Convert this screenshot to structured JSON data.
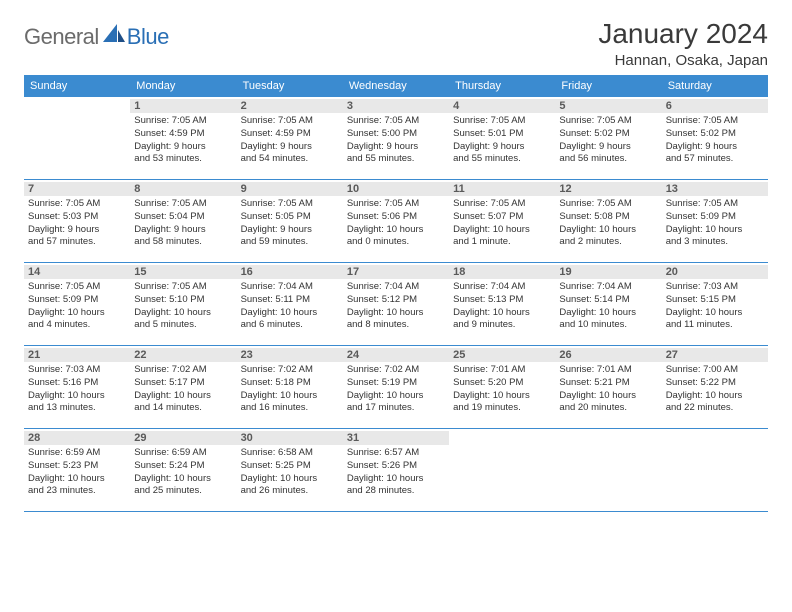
{
  "brand": {
    "part1": "General",
    "part2": "Blue"
  },
  "title": "January 2024",
  "location": "Hannan, Osaka, Japan",
  "colors": {
    "header_bg": "#3b8bd0",
    "header_text": "#ffffff",
    "day_label_bg": "#e8e8e8",
    "day_label_text": "#5a5a5a",
    "body_text": "#333333",
    "brand_gray": "#6b6b6b",
    "brand_blue": "#2a6fb5",
    "rule": "#3b8bd0"
  },
  "weekdays": [
    "Sunday",
    "Monday",
    "Tuesday",
    "Wednesday",
    "Thursday",
    "Friday",
    "Saturday"
  ],
  "weeks": [
    [
      {
        "day": "",
        "sunrise": "",
        "sunset": "",
        "daylight1": "",
        "daylight2": ""
      },
      {
        "day": "1",
        "sunrise": "Sunrise: 7:05 AM",
        "sunset": "Sunset: 4:59 PM",
        "daylight1": "Daylight: 9 hours",
        "daylight2": "and 53 minutes."
      },
      {
        "day": "2",
        "sunrise": "Sunrise: 7:05 AM",
        "sunset": "Sunset: 4:59 PM",
        "daylight1": "Daylight: 9 hours",
        "daylight2": "and 54 minutes."
      },
      {
        "day": "3",
        "sunrise": "Sunrise: 7:05 AM",
        "sunset": "Sunset: 5:00 PM",
        "daylight1": "Daylight: 9 hours",
        "daylight2": "and 55 minutes."
      },
      {
        "day": "4",
        "sunrise": "Sunrise: 7:05 AM",
        "sunset": "Sunset: 5:01 PM",
        "daylight1": "Daylight: 9 hours",
        "daylight2": "and 55 minutes."
      },
      {
        "day": "5",
        "sunrise": "Sunrise: 7:05 AM",
        "sunset": "Sunset: 5:02 PM",
        "daylight1": "Daylight: 9 hours",
        "daylight2": "and 56 minutes."
      },
      {
        "day": "6",
        "sunrise": "Sunrise: 7:05 AM",
        "sunset": "Sunset: 5:02 PM",
        "daylight1": "Daylight: 9 hours",
        "daylight2": "and 57 minutes."
      }
    ],
    [
      {
        "day": "7",
        "sunrise": "Sunrise: 7:05 AM",
        "sunset": "Sunset: 5:03 PM",
        "daylight1": "Daylight: 9 hours",
        "daylight2": "and 57 minutes."
      },
      {
        "day": "8",
        "sunrise": "Sunrise: 7:05 AM",
        "sunset": "Sunset: 5:04 PM",
        "daylight1": "Daylight: 9 hours",
        "daylight2": "and 58 minutes."
      },
      {
        "day": "9",
        "sunrise": "Sunrise: 7:05 AM",
        "sunset": "Sunset: 5:05 PM",
        "daylight1": "Daylight: 9 hours",
        "daylight2": "and 59 minutes."
      },
      {
        "day": "10",
        "sunrise": "Sunrise: 7:05 AM",
        "sunset": "Sunset: 5:06 PM",
        "daylight1": "Daylight: 10 hours",
        "daylight2": "and 0 minutes."
      },
      {
        "day": "11",
        "sunrise": "Sunrise: 7:05 AM",
        "sunset": "Sunset: 5:07 PM",
        "daylight1": "Daylight: 10 hours",
        "daylight2": "and 1 minute."
      },
      {
        "day": "12",
        "sunrise": "Sunrise: 7:05 AM",
        "sunset": "Sunset: 5:08 PM",
        "daylight1": "Daylight: 10 hours",
        "daylight2": "and 2 minutes."
      },
      {
        "day": "13",
        "sunrise": "Sunrise: 7:05 AM",
        "sunset": "Sunset: 5:09 PM",
        "daylight1": "Daylight: 10 hours",
        "daylight2": "and 3 minutes."
      }
    ],
    [
      {
        "day": "14",
        "sunrise": "Sunrise: 7:05 AM",
        "sunset": "Sunset: 5:09 PM",
        "daylight1": "Daylight: 10 hours",
        "daylight2": "and 4 minutes."
      },
      {
        "day": "15",
        "sunrise": "Sunrise: 7:05 AM",
        "sunset": "Sunset: 5:10 PM",
        "daylight1": "Daylight: 10 hours",
        "daylight2": "and 5 minutes."
      },
      {
        "day": "16",
        "sunrise": "Sunrise: 7:04 AM",
        "sunset": "Sunset: 5:11 PM",
        "daylight1": "Daylight: 10 hours",
        "daylight2": "and 6 minutes."
      },
      {
        "day": "17",
        "sunrise": "Sunrise: 7:04 AM",
        "sunset": "Sunset: 5:12 PM",
        "daylight1": "Daylight: 10 hours",
        "daylight2": "and 8 minutes."
      },
      {
        "day": "18",
        "sunrise": "Sunrise: 7:04 AM",
        "sunset": "Sunset: 5:13 PM",
        "daylight1": "Daylight: 10 hours",
        "daylight2": "and 9 minutes."
      },
      {
        "day": "19",
        "sunrise": "Sunrise: 7:04 AM",
        "sunset": "Sunset: 5:14 PM",
        "daylight1": "Daylight: 10 hours",
        "daylight2": "and 10 minutes."
      },
      {
        "day": "20",
        "sunrise": "Sunrise: 7:03 AM",
        "sunset": "Sunset: 5:15 PM",
        "daylight1": "Daylight: 10 hours",
        "daylight2": "and 11 minutes."
      }
    ],
    [
      {
        "day": "21",
        "sunrise": "Sunrise: 7:03 AM",
        "sunset": "Sunset: 5:16 PM",
        "daylight1": "Daylight: 10 hours",
        "daylight2": "and 13 minutes."
      },
      {
        "day": "22",
        "sunrise": "Sunrise: 7:02 AM",
        "sunset": "Sunset: 5:17 PM",
        "daylight1": "Daylight: 10 hours",
        "daylight2": "and 14 minutes."
      },
      {
        "day": "23",
        "sunrise": "Sunrise: 7:02 AM",
        "sunset": "Sunset: 5:18 PM",
        "daylight1": "Daylight: 10 hours",
        "daylight2": "and 16 minutes."
      },
      {
        "day": "24",
        "sunrise": "Sunrise: 7:02 AM",
        "sunset": "Sunset: 5:19 PM",
        "daylight1": "Daylight: 10 hours",
        "daylight2": "and 17 minutes."
      },
      {
        "day": "25",
        "sunrise": "Sunrise: 7:01 AM",
        "sunset": "Sunset: 5:20 PM",
        "daylight1": "Daylight: 10 hours",
        "daylight2": "and 19 minutes."
      },
      {
        "day": "26",
        "sunrise": "Sunrise: 7:01 AM",
        "sunset": "Sunset: 5:21 PM",
        "daylight1": "Daylight: 10 hours",
        "daylight2": "and 20 minutes."
      },
      {
        "day": "27",
        "sunrise": "Sunrise: 7:00 AM",
        "sunset": "Sunset: 5:22 PM",
        "daylight1": "Daylight: 10 hours",
        "daylight2": "and 22 minutes."
      }
    ],
    [
      {
        "day": "28",
        "sunrise": "Sunrise: 6:59 AM",
        "sunset": "Sunset: 5:23 PM",
        "daylight1": "Daylight: 10 hours",
        "daylight2": "and 23 minutes."
      },
      {
        "day": "29",
        "sunrise": "Sunrise: 6:59 AM",
        "sunset": "Sunset: 5:24 PM",
        "daylight1": "Daylight: 10 hours",
        "daylight2": "and 25 minutes."
      },
      {
        "day": "30",
        "sunrise": "Sunrise: 6:58 AM",
        "sunset": "Sunset: 5:25 PM",
        "daylight1": "Daylight: 10 hours",
        "daylight2": "and 26 minutes."
      },
      {
        "day": "31",
        "sunrise": "Sunrise: 6:57 AM",
        "sunset": "Sunset: 5:26 PM",
        "daylight1": "Daylight: 10 hours",
        "daylight2": "and 28 minutes."
      },
      {
        "day": "",
        "sunrise": "",
        "sunset": "",
        "daylight1": "",
        "daylight2": ""
      },
      {
        "day": "",
        "sunrise": "",
        "sunset": "",
        "daylight1": "",
        "daylight2": ""
      },
      {
        "day": "",
        "sunrise": "",
        "sunset": "",
        "daylight1": "",
        "daylight2": ""
      }
    ]
  ]
}
